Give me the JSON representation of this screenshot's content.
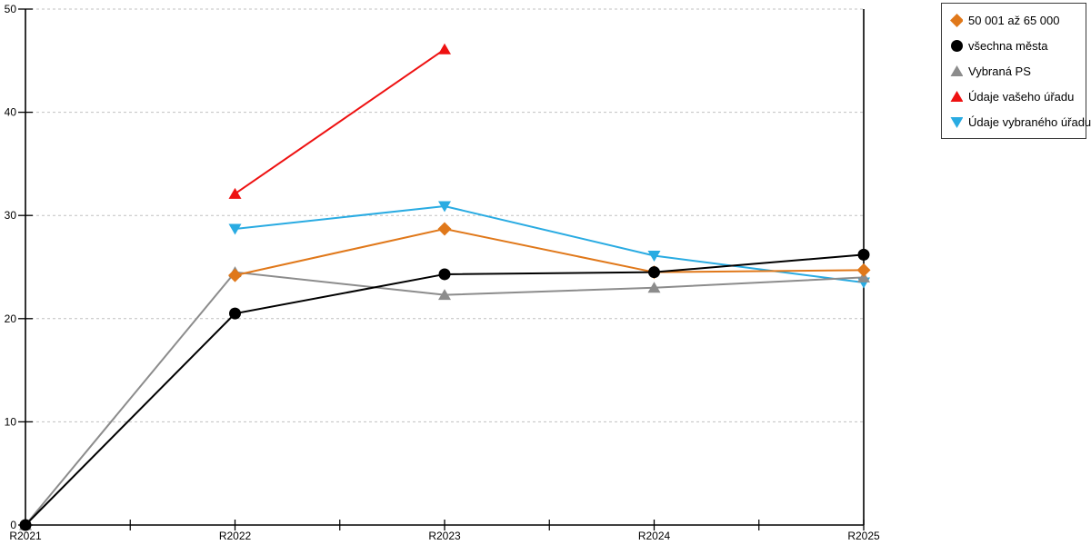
{
  "chart_data": {
    "type": "line",
    "title": "",
    "xlabel": "",
    "ylabel": "",
    "categories": [
      "R2021",
      "R2022",
      "R2023",
      "R2024",
      "R2025"
    ],
    "series": [
      {
        "name": "50 001 až 65 000",
        "color": "#E0781A",
        "marker": "diamond",
        "values": [
          null,
          24.2,
          28.7,
          24.5,
          24.7
        ]
      },
      {
        "name": "všechna města",
        "color": "#000000",
        "marker": "circle",
        "values": [
          0,
          20.5,
          24.3,
          24.5,
          26.2
        ]
      },
      {
        "name": "Vybraná PS",
        "color": "#8C8C8C",
        "marker": "triangle-up",
        "values": [
          0,
          24.5,
          22.3,
          23.0,
          24.0
        ]
      },
      {
        "name": "Údaje vašeho úřadu",
        "color": "#EE1111",
        "marker": "triangle-up",
        "values": [
          null,
          32.1,
          46.1,
          null,
          null
        ]
      },
      {
        "name": "Údaje vybraného úřadu",
        "color": "#29ABE2",
        "marker": "triangle-down",
        "values": [
          null,
          28.7,
          30.9,
          26.1,
          23.5
        ]
      }
    ],
    "draw_order": [
      4,
      2,
      0,
      3,
      1
    ],
    "ylim": [
      0,
      50
    ],
    "yticks": [
      0,
      10,
      20,
      30,
      40,
      50
    ],
    "grid": true,
    "gridline_color": "#C0C0C0",
    "axis_color": "#000000",
    "legend_position": "top-right"
  }
}
